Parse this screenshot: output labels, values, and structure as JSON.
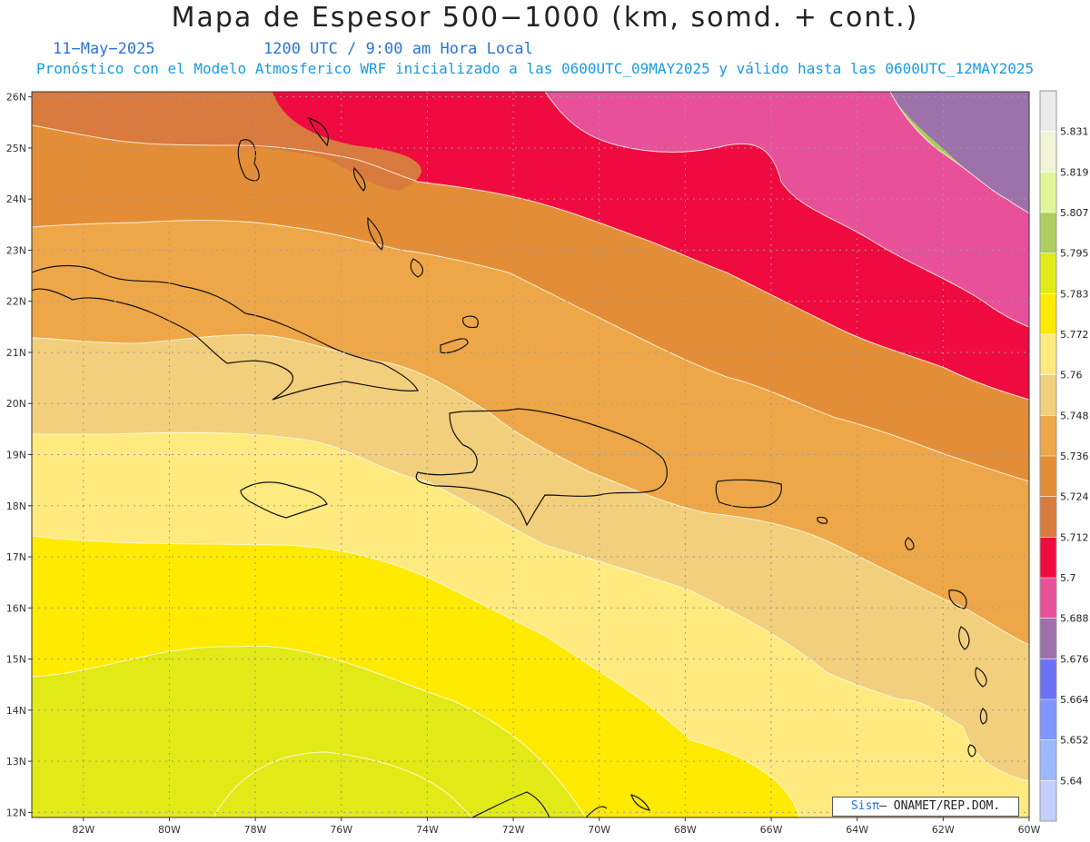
{
  "header": {
    "title": "Mapa de Espesor 500−1000 (km, somd. + cont.)",
    "date": "11−May−2025",
    "time": "1200 UTC / 9:00 am Hora Local",
    "model": "Pronóstico con el Modelo Atmosferico WRF inicializado a las 0600UTC_09MAY2025 y válido hasta las  0600UTC_12MAY2025"
  },
  "map": {
    "lon_range": [
      -83.2,
      -60
    ],
    "lat_range": [
      11.9,
      26.1
    ],
    "lon_ticks": [
      "82W",
      "80W",
      "78W",
      "76W",
      "74W",
      "72W",
      "70W",
      "68W",
      "66W",
      "64W",
      "62W",
      "60W"
    ],
    "lat_ticks": [
      "12N",
      "13N",
      "14N",
      "15N",
      "16N",
      "17N",
      "18N",
      "19N",
      "20N",
      "21N",
      "22N",
      "23N",
      "24N",
      "25N",
      "26N"
    ],
    "grid": "dotted"
  },
  "colorbar": {
    "labels": [
      "5.831",
      "5.819",
      "5.807",
      "5.795",
      "5.783",
      "5.772",
      "5.76",
      "5.748",
      "5.736",
      "5.724",
      "5.712",
      "5.7",
      "5.688",
      "5.676",
      "5.664",
      "5.652",
      "5.64"
    ],
    "colors": [
      "#ebebeb",
      "#f1f5d5",
      "#e2f59a",
      "#acce5e",
      "#e1ea16",
      "#ffea00",
      "#ffea80",
      "#f2cf7c",
      "#eea748",
      "#e38e37",
      "#d97a3e",
      "#ef0a40",
      "#e9509a",
      "#9d72aa",
      "#6c72f5",
      "#7f95ff",
      "#9bb8ff",
      "#c3cefd"
    ]
  },
  "credit": {
    "brand": "Sisπ",
    "text": "– ONAMET/REP.DOM."
  }
}
